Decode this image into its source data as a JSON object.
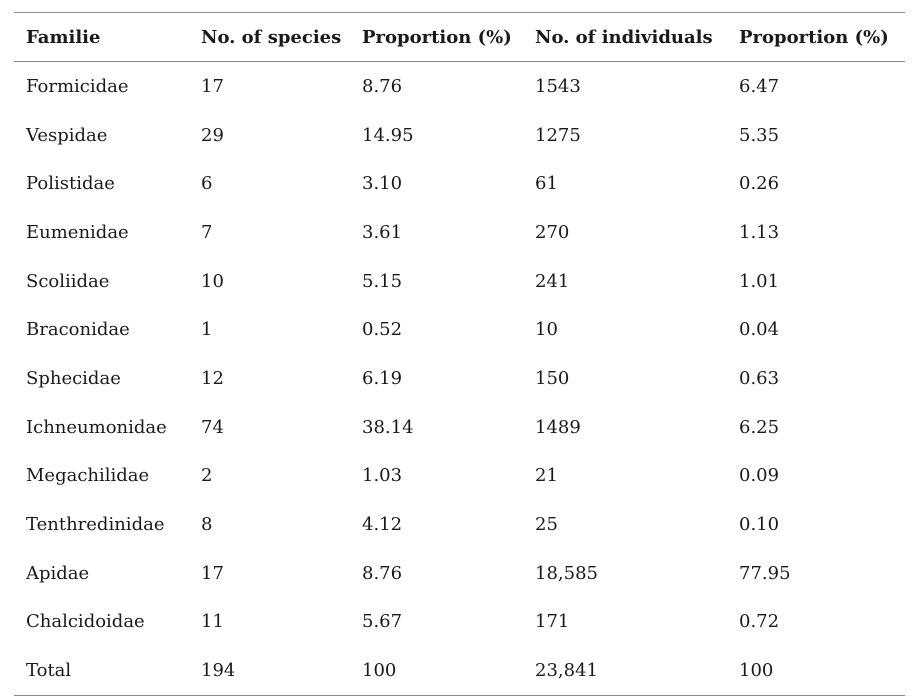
{
  "table": {
    "headers": [
      "Familie",
      "No. of species",
      "Proportion (%)",
      "No. of individuals",
      "Proportion (%)"
    ],
    "rows": [
      [
        "Formicidae",
        "17",
        "8.76",
        "1543",
        "6.47"
      ],
      [
        "Vespidae",
        "29",
        "14.95",
        "1275",
        "5.35"
      ],
      [
        "Polistidae",
        "6",
        "3.10",
        "61",
        "0.26"
      ],
      [
        "Eumenidae",
        "7",
        "3.61",
        "270",
        "1.13"
      ],
      [
        "Scoliidae",
        "10",
        "5.15",
        "241",
        "1.01"
      ],
      [
        "Braconidae",
        "1",
        "0.52",
        "10",
        "0.04"
      ],
      [
        "Sphecidae",
        "12",
        "6.19",
        "150",
        "0.63"
      ],
      [
        "Ichneumonidae",
        "74",
        "38.14",
        "1489",
        "6.25"
      ],
      [
        "Megachilidae",
        "2",
        "1.03",
        "21",
        "0.09"
      ],
      [
        "Tenthredinidae",
        "8",
        "4.12",
        "25",
        "0.10"
      ],
      [
        "Apidae",
        "17",
        "8.76",
        "18,585",
        "77.95"
      ],
      [
        "Chalcidoidae",
        "11",
        "5.67",
        "171",
        "0.72"
      ],
      [
        "Total",
        "194",
        "100",
        "23,841",
        "100"
      ]
    ]
  }
}
